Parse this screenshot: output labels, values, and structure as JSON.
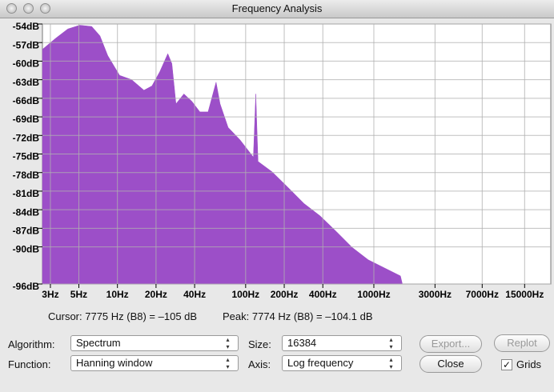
{
  "window": {
    "title": "Frequency Analysis"
  },
  "chart_data": {
    "type": "area",
    "color": "#9c4fc8",
    "log_x": true,
    "grid": true,
    "x": [
      2.6,
      3.3,
      4.1,
      5.08,
      6.3,
      7.3,
      8.4,
      10.4,
      12.9,
      16.1,
      18.6,
      21.4,
      24.7,
      26.6,
      28.6,
      33,
      38.1,
      44,
      50.9,
      58.8,
      63.2,
      73,
      90.2,
      115,
      120,
      125,
      161,
      214,
      285,
      381,
      508,
      678,
      905,
      1209,
      1613,
      1668
    ],
    "values": [
      -58.1,
      -56.3,
      -54.8,
      -54.2,
      -54.4,
      -55.9,
      -59.1,
      -62.3,
      -63,
      -64.7,
      -64,
      -61.7,
      -58.8,
      -60.4,
      -66.9,
      -65.3,
      -66.5,
      -68.2,
      -68.2,
      -63.4,
      -66.9,
      -70.7,
      -72.7,
      -75.5,
      -65.3,
      -76.2,
      -77.9,
      -80.4,
      -83,
      -85,
      -87.5,
      -90.1,
      -92.1,
      -93.4,
      -94.7,
      -96
    ],
    "xlim": [
      2.6,
      24000
    ],
    "xticks": [
      {
        "value": 3,
        "label": "3Hz"
      },
      {
        "value": 5,
        "label": "5Hz"
      },
      {
        "value": 10,
        "label": "10Hz"
      },
      {
        "value": 20,
        "label": "20Hz"
      },
      {
        "value": 40,
        "label": "40Hz"
      },
      {
        "value": 100,
        "label": "100Hz"
      },
      {
        "value": 200,
        "label": "200Hz"
      },
      {
        "value": 400,
        "label": "400Hz"
      },
      {
        "value": 1000,
        "label": "1000Hz"
      },
      {
        "value": 3000,
        "label": "3000Hz"
      },
      {
        "value": 7000,
        "label": "7000Hz"
      },
      {
        "value": 15000,
        "label": "15000Hz"
      }
    ],
    "ylim": [
      -96,
      -54
    ],
    "yticks": [
      {
        "value": -54,
        "label": "-54dB"
      },
      {
        "value": -57,
        "label": "-57dB"
      },
      {
        "value": -60,
        "label": "-60dB"
      },
      {
        "value": -63,
        "label": "-63dB"
      },
      {
        "value": -66,
        "label": "-66dB"
      },
      {
        "value": -69,
        "label": "-69dB"
      },
      {
        "value": -72,
        "label": "-72dB"
      },
      {
        "value": -75,
        "label": "-75dB"
      },
      {
        "value": -78,
        "label": "-78dB"
      },
      {
        "value": -81,
        "label": "-81dB"
      },
      {
        "value": -84,
        "label": "-84dB"
      },
      {
        "value": -87,
        "label": "-87dB"
      },
      {
        "value": -90,
        "label": "-90dB"
      },
      {
        "value": -96,
        "label": "-96dB"
      }
    ]
  },
  "status": {
    "cursor": "Cursor: 7775 Hz (B8) = –105 dB",
    "peak": "Peak: 7774 Hz (B8) = –104.1 dB"
  },
  "controls": {
    "algorithm_label": "Algorithm:",
    "algorithm": "Spectrum",
    "size_label": "Size:",
    "size": "16384",
    "export": "Export...",
    "replot": "Replot",
    "function_label": "Function:",
    "function": "Hanning window",
    "axis_label": "Axis:",
    "axis": "Log frequency",
    "close": "Close",
    "grids": "Grids"
  }
}
